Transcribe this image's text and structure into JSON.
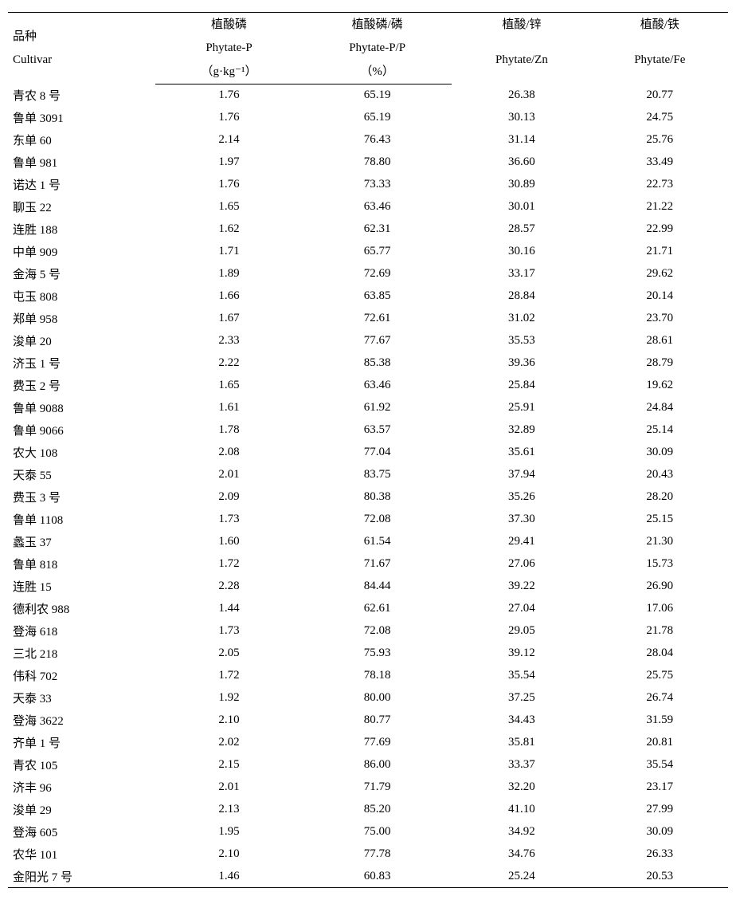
{
  "header": {
    "cultivar": {
      "cn": "品种",
      "en": "Cultivar"
    },
    "phytate_p": {
      "cn": "植酸磷",
      "en": "Phytate-P",
      "unit": "（g·kg⁻¹）"
    },
    "phytate_pp": {
      "cn": "植酸磷/磷",
      "en": "Phytate-P/P",
      "unit": "（%）"
    },
    "phytate_zn": {
      "cn": "植酸/锌",
      "en": "Phytate/Zn"
    },
    "phytate_fe": {
      "cn": "植酸/铁",
      "en": "Phytate/Fe"
    }
  },
  "rows": [
    {
      "name": "青农 8 号",
      "p": "1.76",
      "pp": "65.19",
      "zn": "26.38",
      "fe": "20.77"
    },
    {
      "name": "鲁单 3091",
      "p": "1.76",
      "pp": "65.19",
      "zn": "30.13",
      "fe": "24.75"
    },
    {
      "name": "东单 60",
      "p": "2.14",
      "pp": "76.43",
      "zn": "31.14",
      "fe": "25.76"
    },
    {
      "name": "鲁单 981",
      "p": "1.97",
      "pp": "78.80",
      "zn": "36.60",
      "fe": "33.49"
    },
    {
      "name": "诺达 1 号",
      "p": "1.76",
      "pp": "73.33",
      "zn": "30.89",
      "fe": "22.73"
    },
    {
      "name": "聊玉 22",
      "p": "1.65",
      "pp": "63.46",
      "zn": "30.01",
      "fe": "21.22"
    },
    {
      "name": "连胜 188",
      "p": "1.62",
      "pp": "62.31",
      "zn": "28.57",
      "fe": "22.99"
    },
    {
      "name": "中单 909",
      "p": "1.71",
      "pp": "65.77",
      "zn": "30.16",
      "fe": "21.71"
    },
    {
      "name": "金海 5 号",
      "p": "1.89",
      "pp": "72.69",
      "zn": "33.17",
      "fe": "29.62"
    },
    {
      "name": "屯玉 808",
      "p": "1.66",
      "pp": "63.85",
      "zn": "28.84",
      "fe": "20.14"
    },
    {
      "name": "郑单 958",
      "p": "1.67",
      "pp": "72.61",
      "zn": "31.02",
      "fe": "23.70"
    },
    {
      "name": "浚单 20",
      "p": "2.33",
      "pp": "77.67",
      "zn": "35.53",
      "fe": "28.61"
    },
    {
      "name": "济玉 1 号",
      "p": "2.22",
      "pp": "85.38",
      "zn": "39.36",
      "fe": "28.79"
    },
    {
      "name": "费玉 2 号",
      "p": "1.65",
      "pp": "63.46",
      "zn": "25.84",
      "fe": "19.62"
    },
    {
      "name": "鲁单 9088",
      "p": "1.61",
      "pp": "61.92",
      "zn": "25.91",
      "fe": "24.84"
    },
    {
      "name": "鲁单 9066",
      "p": "1.78",
      "pp": "63.57",
      "zn": "32.89",
      "fe": "25.14"
    },
    {
      "name": "农大 108",
      "p": "2.08",
      "pp": "77.04",
      "zn": "35.61",
      "fe": "30.09"
    },
    {
      "name": "天泰 55",
      "p": "2.01",
      "pp": "83.75",
      "zn": "37.94",
      "fe": "20.43"
    },
    {
      "name": "费玉 3 号",
      "p": "2.09",
      "pp": "80.38",
      "zn": "35.26",
      "fe": "28.20"
    },
    {
      "name": "鲁单 1108",
      "p": "1.73",
      "pp": "72.08",
      "zn": "37.30",
      "fe": "25.15"
    },
    {
      "name": "蠡玉 37",
      "p": "1.60",
      "pp": "61.54",
      "zn": "29.41",
      "fe": "21.30"
    },
    {
      "name": "鲁单 818",
      "p": "1.72",
      "pp": "71.67",
      "zn": "27.06",
      "fe": "15.73"
    },
    {
      "name": "连胜 15",
      "p": "2.28",
      "pp": "84.44",
      "zn": "39.22",
      "fe": "26.90"
    },
    {
      "name": "德利农 988",
      "p": "1.44",
      "pp": "62.61",
      "zn": "27.04",
      "fe": "17.06"
    },
    {
      "name": "登海 618",
      "p": "1.73",
      "pp": "72.08",
      "zn": "29.05",
      "fe": "21.78"
    },
    {
      "name": "三北 218",
      "p": "2.05",
      "pp": "75.93",
      "zn": "39.12",
      "fe": "28.04"
    },
    {
      "name": "伟科 702",
      "p": "1.72",
      "pp": "78.18",
      "zn": "35.54",
      "fe": "25.75"
    },
    {
      "name": "天泰 33",
      "p": "1.92",
      "pp": "80.00",
      "zn": "37.25",
      "fe": "26.74"
    },
    {
      "name": "登海 3622",
      "p": "2.10",
      "pp": "80.77",
      "zn": "34.43",
      "fe": "31.59"
    },
    {
      "name": "齐单 1 号",
      "p": "2.02",
      "pp": "77.69",
      "zn": "35.81",
      "fe": "20.81"
    },
    {
      "name": "青农 105",
      "p": "2.15",
      "pp": "86.00",
      "zn": "33.37",
      "fe": "35.54"
    },
    {
      "name": "济丰 96",
      "p": "2.01",
      "pp": "71.79",
      "zn": "32.20",
      "fe": "23.17"
    },
    {
      "name": "浚单 29",
      "p": "2.13",
      "pp": "85.20",
      "zn": "41.10",
      "fe": "27.99"
    },
    {
      "name": "登海 605",
      "p": "1.95",
      "pp": "75.00",
      "zn": "34.92",
      "fe": "30.09"
    },
    {
      "name": "农华 101",
      "p": "2.10",
      "pp": "77.78",
      "zn": "34.76",
      "fe": "26.33"
    },
    {
      "name": "金阳光 7 号",
      "p": "1.46",
      "pp": "60.83",
      "zn": "25.24",
      "fe": "20.53"
    }
  ]
}
